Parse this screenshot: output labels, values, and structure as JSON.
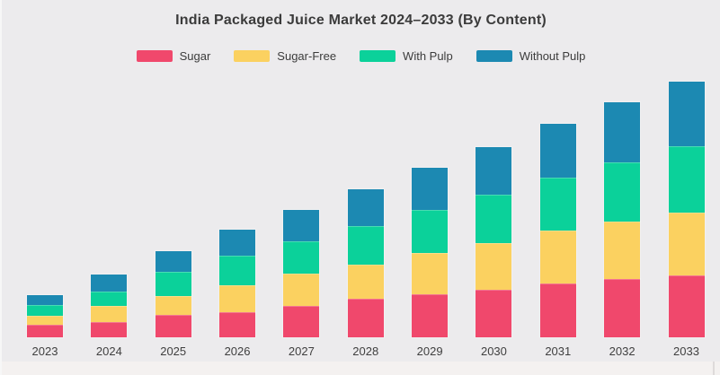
{
  "chart_data": {
    "type": "bar",
    "stacked": true,
    "title": "India Packaged Juice Market 2024–2033 (By Content)",
    "xlabel": "",
    "ylabel": "",
    "categories": [
      "2023",
      "2024",
      "2025",
      "2026",
      "2027",
      "2028",
      "2029",
      "2030",
      "2031",
      "2032",
      "2033"
    ],
    "series": [
      {
        "name": "Sugar",
        "color": "#F0486C",
        "values": [
          14,
          17,
          25,
          28,
          35,
          43,
          48,
          53,
          60,
          65,
          69
        ]
      },
      {
        "name": "Sugar-Free",
        "color": "#FBD160",
        "values": [
          10,
          18,
          21,
          30,
          36,
          38,
          46,
          52,
          59,
          64,
          70
        ]
      },
      {
        "name": "With Pulp",
        "color": "#0BD19A",
        "values": [
          12,
          16,
          27,
          33,
          36,
          43,
          48,
          54,
          59,
          66,
          74
        ]
      },
      {
        "name": "Without Pulp",
        "color": "#1C89B2",
        "values": [
          11,
          19,
          23,
          29,
          35,
          41,
          47,
          53,
          60,
          67,
          72
        ]
      }
    ],
    "totals": [
      47,
      70,
      96,
      120,
      142,
      165,
      189,
      212,
      238,
      262,
      285
    ],
    "value_units": "relative units (no value axis shown in chart)",
    "ylim": [
      0,
      300
    ],
    "grid": false,
    "y_axis_visible": false,
    "legend_position": "top"
  },
  "colors": {
    "background": "#ECEBED",
    "bottom_strip": "#F4F1F0",
    "title_text": "#3B3B3B",
    "axis_text": "#3F3F3F"
  }
}
